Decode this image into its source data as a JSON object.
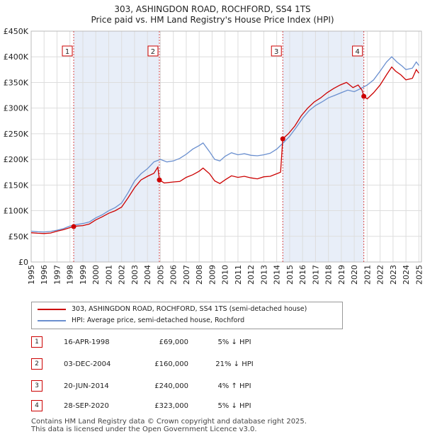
{
  "chart_data": {
    "type": "line",
    "title": "303, ASHINGDON ROAD, ROCHFORD, SS4 1TS",
    "subtitle": "Price paid vs. HM Land Registry's House Price Index (HPI)",
    "xlabel": "",
    "ylabel": "",
    "xlim": [
      1995,
      2025.2
    ],
    "ylim": [
      0,
      450000
    ],
    "yticks": [
      {
        "v": 0,
        "label": "£0"
      },
      {
        "v": 50000,
        "label": "£50K"
      },
      {
        "v": 100000,
        "label": "£100K"
      },
      {
        "v": 150000,
        "label": "£150K"
      },
      {
        "v": 200000,
        "label": "£200K"
      },
      {
        "v": 250000,
        "label": "£250K"
      },
      {
        "v": 300000,
        "label": "£300K"
      },
      {
        "v": 350000,
        "label": "£350K"
      },
      {
        "v": 400000,
        "label": "£400K"
      },
      {
        "v": 450000,
        "label": "£450K"
      }
    ],
    "xticks": [
      "1995",
      "1996",
      "1997",
      "1998",
      "1999",
      "2000",
      "2001",
      "2002",
      "2003",
      "2004",
      "2005",
      "2006",
      "2007",
      "2008",
      "2009",
      "2010",
      "2011",
      "2012",
      "2013",
      "2014",
      "2015",
      "2016",
      "2017",
      "2018",
      "2019",
      "2020",
      "2021",
      "2022",
      "2023",
      "2024",
      "2025"
    ],
    "grid": true,
    "series": [
      {
        "name": "303, ASHINGDON ROAD, ROCHFORD, SS4 1TS (semi-detached house)",
        "color": "#cc0000",
        "points": [
          [
            1995.0,
            57000
          ],
          [
            1995.5,
            56000
          ],
          [
            1996.0,
            55500
          ],
          [
            1996.5,
            56500
          ],
          [
            1997.0,
            60000
          ],
          [
            1997.5,
            63000
          ],
          [
            1998.0,
            67000
          ],
          [
            1998.29,
            69000
          ],
          [
            1998.5,
            70000
          ],
          [
            1999.0,
            71000
          ],
          [
            1999.5,
            74000
          ],
          [
            2000.0,
            82000
          ],
          [
            2000.5,
            88000
          ],
          [
            2001.0,
            95000
          ],
          [
            2001.5,
            100000
          ],
          [
            2002.0,
            107000
          ],
          [
            2002.5,
            125000
          ],
          [
            2003.0,
            145000
          ],
          [
            2003.5,
            160000
          ],
          [
            2004.0,
            167000
          ],
          [
            2004.5,
            173000
          ],
          [
            2004.8,
            185000
          ],
          [
            2004.92,
            160000
          ],
          [
            2005.3,
            154000
          ],
          [
            2006.0,
            156000
          ],
          [
            2006.5,
            157000
          ],
          [
            2007.0,
            165000
          ],
          [
            2007.5,
            170000
          ],
          [
            2008.0,
            177000
          ],
          [
            2008.3,
            183000
          ],
          [
            2008.8,
            172000
          ],
          [
            2009.2,
            158000
          ],
          [
            2009.6,
            153000
          ],
          [
            2010.0,
            160000
          ],
          [
            2010.5,
            168000
          ],
          [
            2011.0,
            165000
          ],
          [
            2011.5,
            167000
          ],
          [
            2012.0,
            164000
          ],
          [
            2012.5,
            162000
          ],
          [
            2013.0,
            166000
          ],
          [
            2013.5,
            167000
          ],
          [
            2014.0,
            172000
          ],
          [
            2014.3,
            175000
          ],
          [
            2014.47,
            240000
          ],
          [
            2014.9,
            250000
          ],
          [
            2015.4,
            265000
          ],
          [
            2015.9,
            285000
          ],
          [
            2016.4,
            300000
          ],
          [
            2016.9,
            312000
          ],
          [
            2017.4,
            320000
          ],
          [
            2017.9,
            330000
          ],
          [
            2018.4,
            338000
          ],
          [
            2018.9,
            345000
          ],
          [
            2019.4,
            350000
          ],
          [
            2019.9,
            340000
          ],
          [
            2020.3,
            345000
          ],
          [
            2020.6,
            335000
          ],
          [
            2020.74,
            323000
          ],
          [
            2021.0,
            318000
          ],
          [
            2021.5,
            330000
          ],
          [
            2022.0,
            345000
          ],
          [
            2022.5,
            365000
          ],
          [
            2022.9,
            380000
          ],
          [
            2023.2,
            372000
          ],
          [
            2023.6,
            365000
          ],
          [
            2024.0,
            355000
          ],
          [
            2024.5,
            358000
          ],
          [
            2024.8,
            375000
          ],
          [
            2025.0,
            368000
          ]
        ]
      },
      {
        "name": "HPI: Average price, semi-detached house, Rochford",
        "color": "#6a8fcf",
        "points": [
          [
            1995.0,
            60000
          ],
          [
            1995.5,
            59000
          ],
          [
            1996.0,
            58500
          ],
          [
            1996.5,
            59500
          ],
          [
            1997.0,
            62000
          ],
          [
            1997.5,
            65000
          ],
          [
            1998.0,
            70000
          ],
          [
            1998.5,
            73000
          ],
          [
            1999.0,
            75000
          ],
          [
            1999.5,
            78000
          ],
          [
            2000.0,
            86000
          ],
          [
            2000.5,
            92000
          ],
          [
            2001.0,
            100000
          ],
          [
            2001.5,
            106000
          ],
          [
            2002.0,
            115000
          ],
          [
            2002.5,
            135000
          ],
          [
            2003.0,
            158000
          ],
          [
            2003.5,
            172000
          ],
          [
            2004.0,
            182000
          ],
          [
            2004.5,
            195000
          ],
          [
            2005.0,
            200000
          ],
          [
            2005.5,
            195000
          ],
          [
            2006.0,
            197000
          ],
          [
            2006.5,
            202000
          ],
          [
            2007.0,
            210000
          ],
          [
            2007.5,
            220000
          ],
          [
            2008.0,
            227000
          ],
          [
            2008.3,
            232000
          ],
          [
            2008.8,
            215000
          ],
          [
            2009.2,
            200000
          ],
          [
            2009.6,
            197000
          ],
          [
            2010.0,
            206000
          ],
          [
            2010.5,
            213000
          ],
          [
            2011.0,
            209000
          ],
          [
            2011.5,
            211000
          ],
          [
            2012.0,
            208000
          ],
          [
            2012.5,
            207000
          ],
          [
            2013.0,
            209000
          ],
          [
            2013.5,
            212000
          ],
          [
            2014.0,
            220000
          ],
          [
            2014.5,
            232000
          ],
          [
            2015.0,
            245000
          ],
          [
            2015.5,
            262000
          ],
          [
            2016.0,
            280000
          ],
          [
            2016.5,
            295000
          ],
          [
            2017.0,
            305000
          ],
          [
            2017.5,
            312000
          ],
          [
            2018.0,
            320000
          ],
          [
            2018.5,
            325000
          ],
          [
            2019.0,
            330000
          ],
          [
            2019.5,
            335000
          ],
          [
            2020.0,
            332000
          ],
          [
            2020.5,
            338000
          ],
          [
            2021.0,
            345000
          ],
          [
            2021.5,
            355000
          ],
          [
            2022.0,
            372000
          ],
          [
            2022.5,
            390000
          ],
          [
            2022.9,
            400000
          ],
          [
            2023.3,
            390000
          ],
          [
            2023.7,
            382000
          ],
          [
            2024.0,
            375000
          ],
          [
            2024.5,
            378000
          ],
          [
            2024.8,
            390000
          ],
          [
            2025.0,
            383000
          ]
        ]
      }
    ],
    "sales": [
      {
        "label": "1",
        "x": 1998.29,
        "y": 69000
      },
      {
        "label": "2",
        "x": 2004.92,
        "y": 160000
      },
      {
        "label": "3",
        "x": 2014.47,
        "y": 240000
      },
      {
        "label": "4",
        "x": 2020.74,
        "y": 323000
      }
    ],
    "shaded_spans": [
      [
        1998.29,
        2004.92
      ],
      [
        2014.47,
        2020.74
      ]
    ]
  },
  "legend": {
    "property_label": "303, ASHINGDON ROAD, ROCHFORD, SS4 1TS (semi-detached house)",
    "hpi_label": "HPI: Average price, semi-detached house, Rochford"
  },
  "transactions": [
    {
      "num": "1",
      "date": "16-APR-1998",
      "price": "£69,000",
      "diff": "5% ↓ HPI"
    },
    {
      "num": "2",
      "date": "03-DEC-2004",
      "price": "£160,000",
      "diff": "21% ↓ HPI"
    },
    {
      "num": "3",
      "date": "20-JUN-2014",
      "price": "£240,000",
      "diff": "4% ↑ HPI"
    },
    {
      "num": "4",
      "date": "28-SEP-2020",
      "price": "£323,000",
      "diff": "5% ↓ HPI"
    }
  ],
  "footer": {
    "line1": "Contains HM Land Registry data © Crown copyright and database right 2025.",
    "line2": "This data is licensed under the Open Government Licence v3.0."
  },
  "colors": {
    "property": "#cc0000",
    "hpi": "#6a8fcf",
    "shade": "#e8eef8",
    "grid": "#dddddd"
  }
}
